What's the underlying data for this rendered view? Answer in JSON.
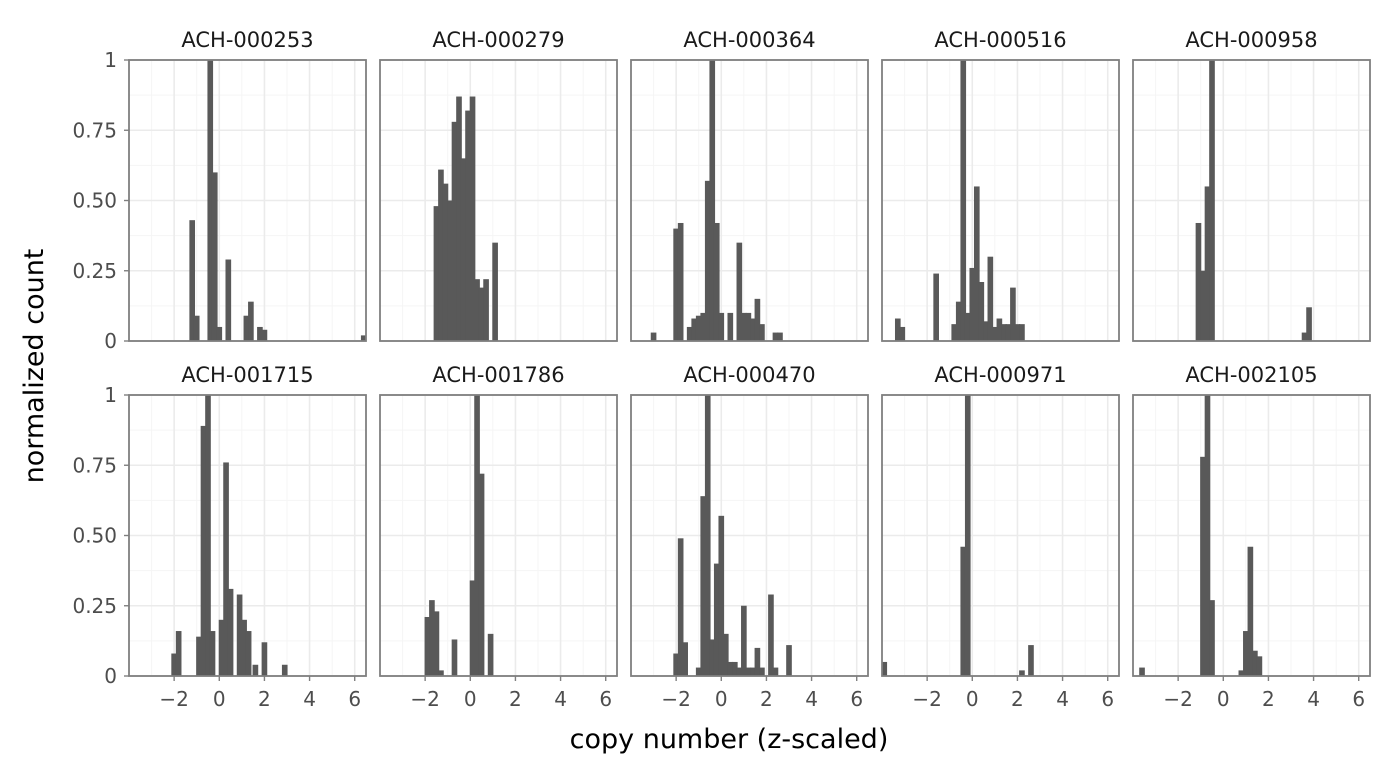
{
  "chart_data": {
    "type": "bar",
    "subtype": "faceted-histogram",
    "xlabel": "copy number (z-scaled)",
    "ylabel": "normalized count",
    "xlim": [
      -4,
      6.5
    ],
    "ylim": [
      0,
      1
    ],
    "xticks": [
      -2,
      0,
      2,
      4,
      6
    ],
    "xtick_labels": [
      "−2",
      "0",
      "2",
      "4",
      "6"
    ],
    "yticks": [
      0,
      0.25,
      0.5,
      0.75,
      1
    ],
    "ytick_labels": [
      "0",
      "0.25",
      "0.50",
      "0.75",
      "1"
    ],
    "grid": true,
    "bar_color": "#595959",
    "bin_width": 0.25,
    "panels": [
      {
        "title": "ACH-000253",
        "bins": [
          [
            -1.2,
            0.43
          ],
          [
            -1.0,
            0.09
          ],
          [
            -0.4,
            1.0
          ],
          [
            -0.2,
            0.6
          ],
          [
            0.0,
            0.05
          ],
          [
            0.4,
            0.29
          ],
          [
            1.2,
            0.09
          ],
          [
            1.4,
            0.14
          ],
          [
            1.8,
            0.05
          ],
          [
            2.0,
            0.04
          ],
          [
            6.4,
            0.02
          ]
        ]
      },
      {
        "title": "ACH-000279",
        "bins": [
          [
            -1.5,
            0.48
          ],
          [
            -1.3,
            0.61
          ],
          [
            -1.1,
            0.56
          ],
          [
            -0.9,
            0.5
          ],
          [
            -0.7,
            0.78
          ],
          [
            -0.5,
            0.87
          ],
          [
            -0.3,
            0.65
          ],
          [
            -0.1,
            0.82
          ],
          [
            0.1,
            0.87
          ],
          [
            0.3,
            0.22
          ],
          [
            0.5,
            0.19
          ],
          [
            0.7,
            0.22
          ],
          [
            1.1,
            0.35
          ]
        ]
      },
      {
        "title": "ACH-000364",
        "bins": [
          [
            -3.0,
            0.03
          ],
          [
            -2.0,
            0.4
          ],
          [
            -1.8,
            0.42
          ],
          [
            -1.4,
            0.05
          ],
          [
            -1.2,
            0.08
          ],
          [
            -1.0,
            0.09
          ],
          [
            -0.8,
            0.1
          ],
          [
            -0.6,
            0.57
          ],
          [
            -0.4,
            1.0
          ],
          [
            -0.2,
            0.42
          ],
          [
            0.0,
            0.1
          ],
          [
            0.4,
            0.1
          ],
          [
            0.8,
            0.35
          ],
          [
            1.0,
            0.1
          ],
          [
            1.2,
            0.1
          ],
          [
            1.4,
            0.08
          ],
          [
            1.6,
            0.15
          ],
          [
            1.8,
            0.06
          ],
          [
            2.4,
            0.03
          ],
          [
            2.6,
            0.03
          ]
        ]
      },
      {
        "title": "ACH-000516",
        "bins": [
          [
            -3.3,
            0.08
          ],
          [
            -3.1,
            0.05
          ],
          [
            -1.6,
            0.24
          ],
          [
            -0.8,
            0.06
          ],
          [
            -0.6,
            0.14
          ],
          [
            -0.4,
            1.0
          ],
          [
            -0.2,
            0.1
          ],
          [
            0.0,
            0.26
          ],
          [
            0.2,
            0.55
          ],
          [
            0.4,
            0.21
          ],
          [
            0.6,
            0.07
          ],
          [
            0.8,
            0.3
          ],
          [
            1.0,
            0.05
          ],
          [
            1.2,
            0.08
          ],
          [
            1.4,
            0.06
          ],
          [
            1.6,
            0.06
          ],
          [
            1.8,
            0.19
          ],
          [
            2.0,
            0.06
          ],
          [
            2.2,
            0.06
          ]
        ]
      },
      {
        "title": "ACH-000958",
        "bins": [
          [
            -1.1,
            0.42
          ],
          [
            -0.9,
            0.25
          ],
          [
            -0.7,
            0.55
          ],
          [
            -0.5,
            1.0
          ],
          [
            3.6,
            0.03
          ],
          [
            3.8,
            0.12
          ]
        ]
      },
      {
        "title": "ACH-001715",
        "bins": [
          [
            -2.0,
            0.08
          ],
          [
            -1.8,
            0.16
          ],
          [
            -0.9,
            0.14
          ],
          [
            -0.7,
            0.89
          ],
          [
            -0.5,
            1.0
          ],
          [
            -0.3,
            0.16
          ],
          [
            0.1,
            0.2
          ],
          [
            0.3,
            0.76
          ],
          [
            0.5,
            0.31
          ],
          [
            0.9,
            0.29
          ],
          [
            1.1,
            0.2
          ],
          [
            1.3,
            0.16
          ],
          [
            1.6,
            0.04
          ],
          [
            2.0,
            0.12
          ],
          [
            2.9,
            0.04
          ]
        ]
      },
      {
        "title": "ACH-001786",
        "bins": [
          [
            -1.9,
            0.21
          ],
          [
            -1.7,
            0.27
          ],
          [
            -1.5,
            0.23
          ],
          [
            -1.3,
            0.02
          ],
          [
            -0.7,
            0.13
          ],
          [
            0.1,
            0.34
          ],
          [
            0.3,
            1.0
          ],
          [
            0.5,
            0.72
          ],
          [
            0.9,
            0.15
          ]
        ]
      },
      {
        "title": "ACH-000470",
        "bins": [
          [
            -2.0,
            0.08
          ],
          [
            -1.8,
            0.49
          ],
          [
            -1.6,
            0.12
          ],
          [
            -1.0,
            0.03
          ],
          [
            -0.8,
            0.64
          ],
          [
            -0.6,
            1.0
          ],
          [
            -0.4,
            0.13
          ],
          [
            -0.2,
            0.4
          ],
          [
            0.0,
            0.57
          ],
          [
            0.2,
            0.15
          ],
          [
            0.4,
            0.05
          ],
          [
            0.6,
            0.05
          ],
          [
            0.8,
            0.03
          ],
          [
            1.0,
            0.25
          ],
          [
            1.2,
            0.03
          ],
          [
            1.4,
            0.03
          ],
          [
            1.6,
            0.1
          ],
          [
            1.8,
            0.03
          ],
          [
            2.2,
            0.29
          ],
          [
            2.4,
            0.03
          ],
          [
            3.0,
            0.11
          ]
        ]
      },
      {
        "title": "ACH-000971",
        "bins": [
          [
            -3.9,
            0.05
          ],
          [
            -0.4,
            0.46
          ],
          [
            -0.2,
            1.0
          ],
          [
            2.2,
            0.02
          ],
          [
            2.6,
            0.11
          ]
        ]
      },
      {
        "title": "ACH-002105",
        "bins": [
          [
            -3.6,
            0.03
          ],
          [
            -0.9,
            0.78
          ],
          [
            -0.7,
            1.0
          ],
          [
            -0.5,
            0.27
          ],
          [
            0.8,
            0.02
          ],
          [
            1.0,
            0.16
          ],
          [
            1.2,
            0.46
          ],
          [
            1.4,
            0.09
          ],
          [
            1.6,
            0.07
          ]
        ]
      }
    ]
  }
}
